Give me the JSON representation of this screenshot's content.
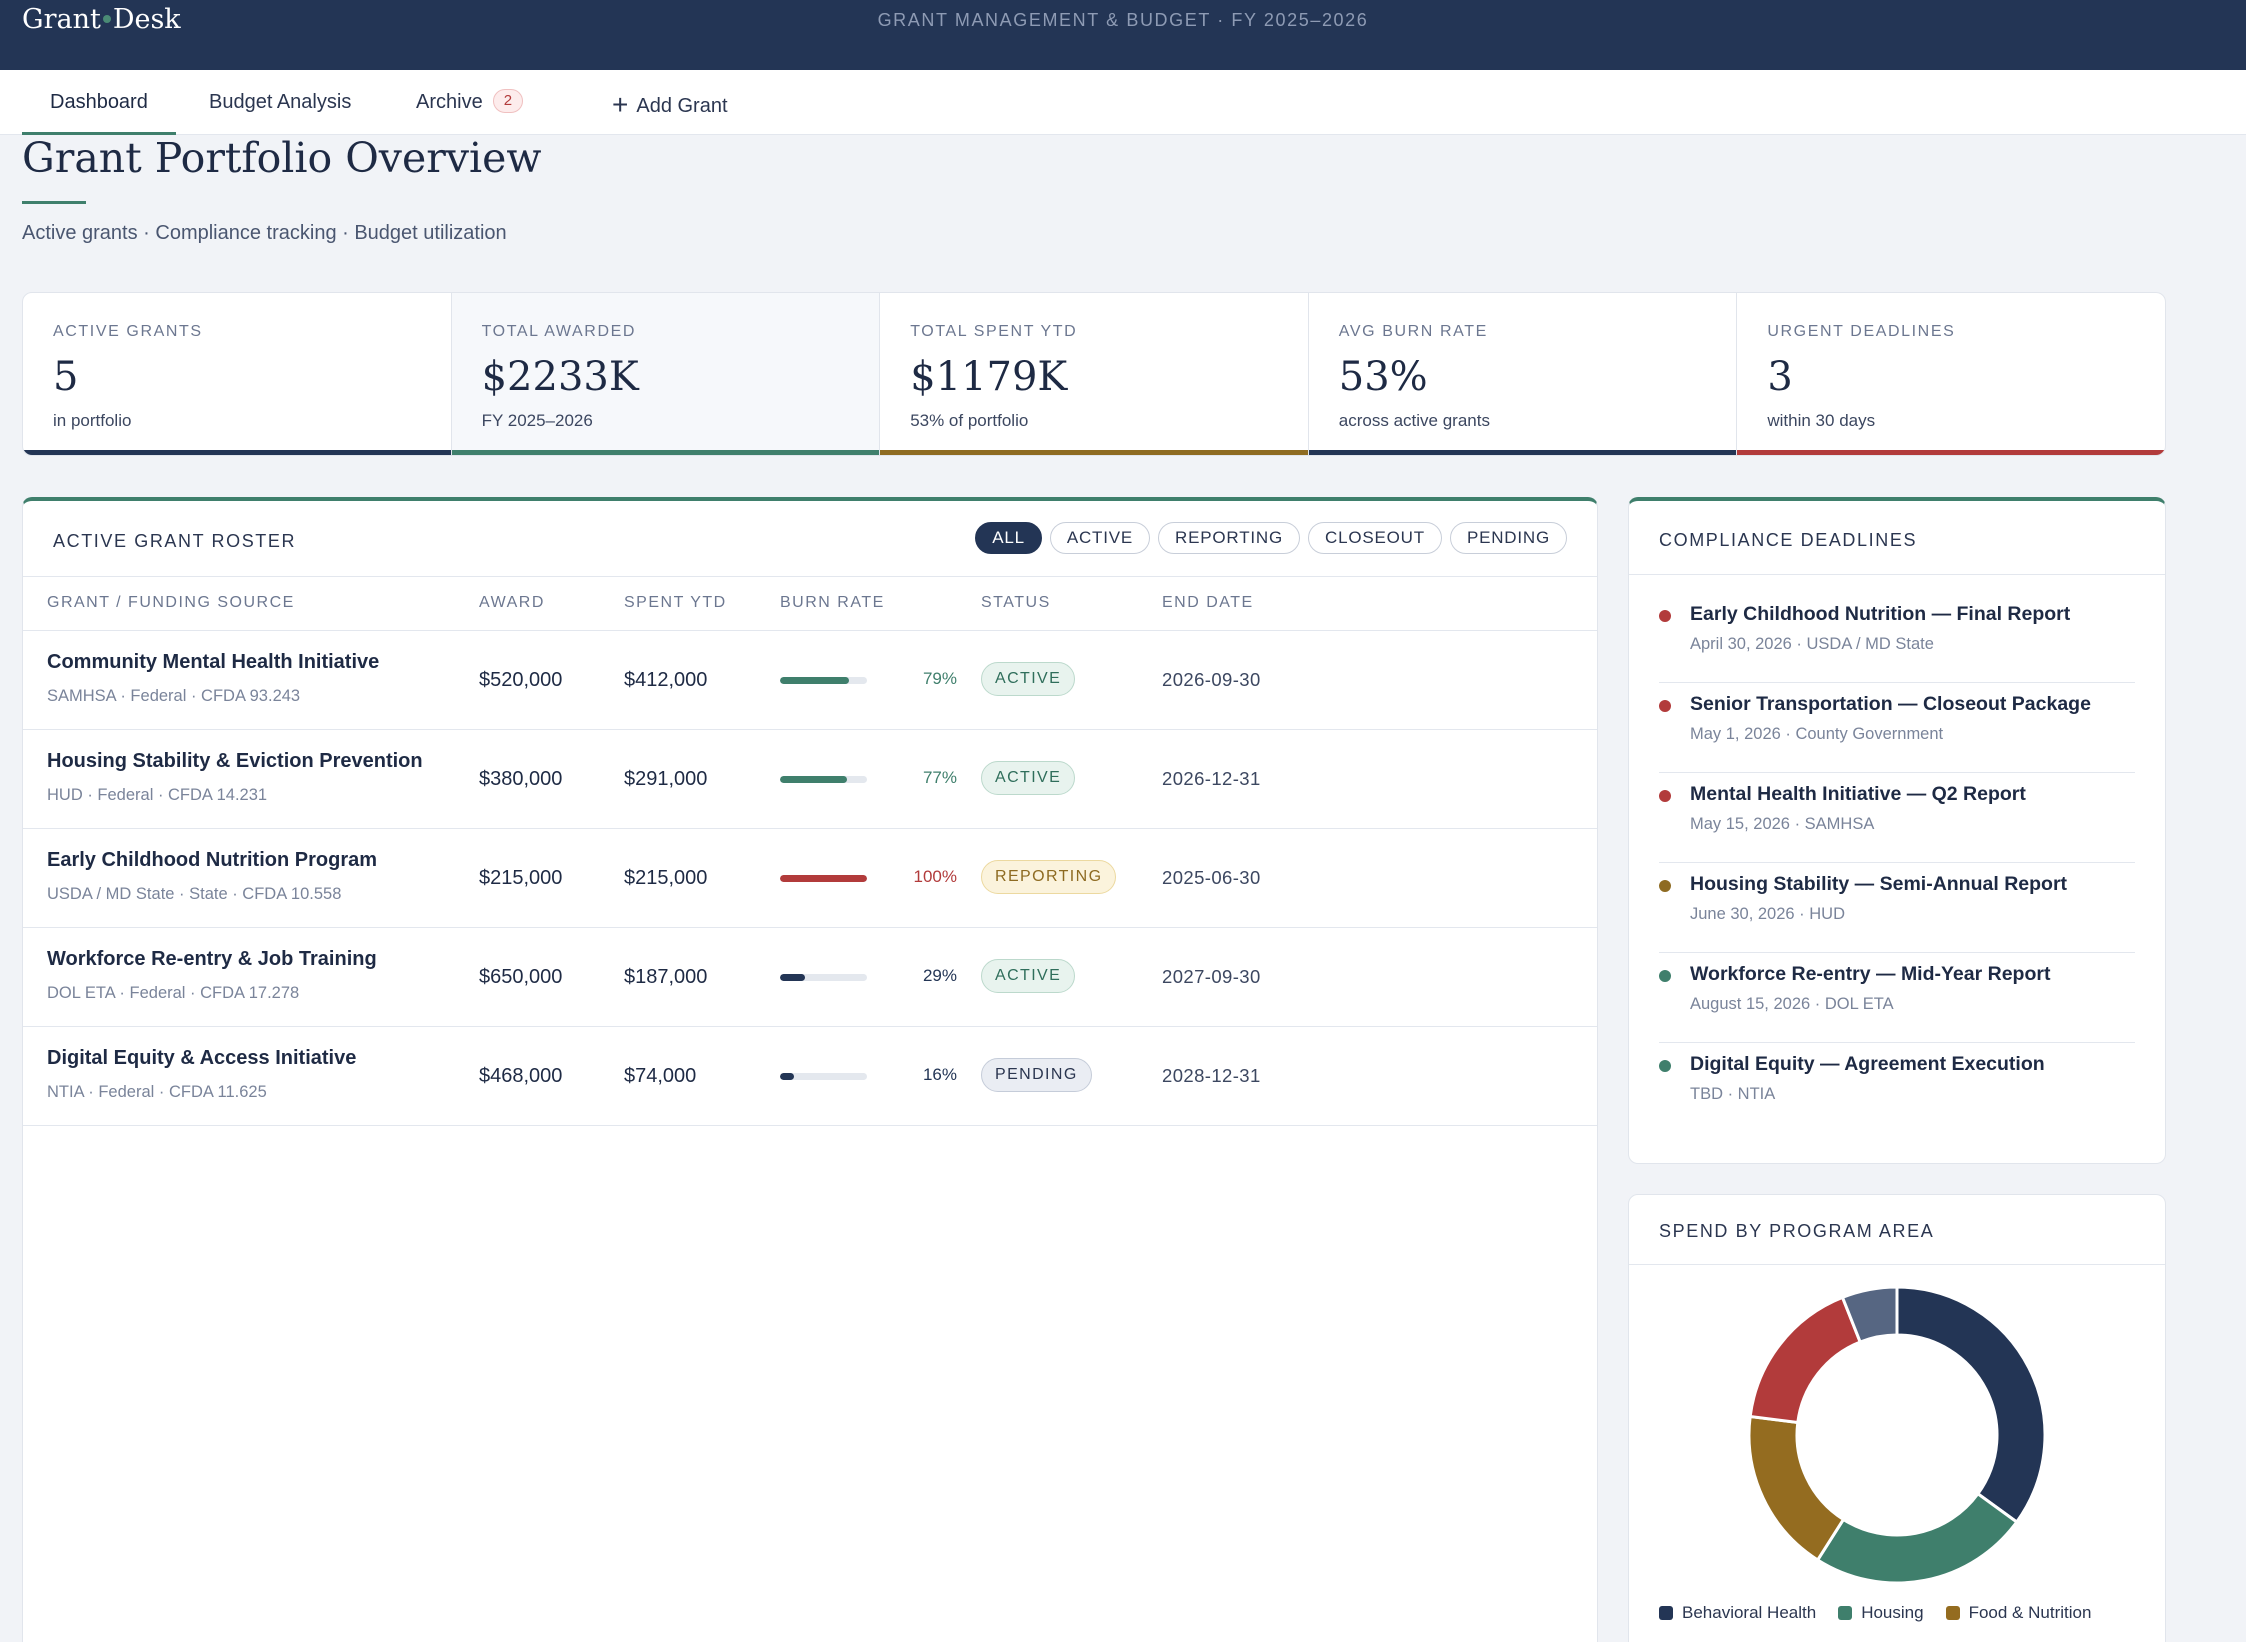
{
  "header": {
    "logo_left": "Grant",
    "logo_right": "Desk",
    "subtitle": "GRANT MANAGEMENT & BUDGET · FY 2025–2026"
  },
  "nav": {
    "tabs": [
      {
        "label": "Dashboard"
      },
      {
        "label": "Budget Analysis"
      },
      {
        "label": "Archive",
        "count": "2"
      }
    ],
    "add_label": "Add Grant"
  },
  "page": {
    "title": "Grant Portfolio Overview",
    "subtitle": "Active grants · Compliance tracking · Budget utilization"
  },
  "stats": [
    {
      "label": "ACTIVE GRANTS",
      "value": "5",
      "sub": "in portfolio",
      "color": "#233555"
    },
    {
      "label": "TOTAL AWARDED",
      "value": "$2233K",
      "sub": "FY 2025–2026",
      "color": "#3f7f6c"
    },
    {
      "label": "TOTAL SPENT YTD",
      "value": "$1179K",
      "sub": "53% of portfolio",
      "color": "#8e6b22"
    },
    {
      "label": "AVG BURN RATE",
      "value": "53%",
      "sub": "across active grants",
      "color": "#233555"
    },
    {
      "label": "URGENT DEADLINES",
      "value": "3",
      "sub": "within 30 days",
      "color": "#b23b3b"
    }
  ],
  "roster": {
    "title": "ACTIVE GRANT ROSTER",
    "filters": [
      "ALL",
      "ACTIVE",
      "REPORTING",
      "CLOSEOUT",
      "PENDING"
    ],
    "columns": [
      "GRANT / FUNDING SOURCE",
      "AWARD",
      "SPENT YTD",
      "BURN RATE",
      "STATUS",
      "END DATE"
    ],
    "rows": [
      {
        "name": "Community Mental Health Initiative",
        "source": "SAMHSA · Federal · CFDA 93.243",
        "award": "$520,000",
        "spent": "$412,000",
        "burn": 79,
        "burn_label": "79%",
        "status": "ACTIVE",
        "end": "2026-09-30"
      },
      {
        "name": "Housing Stability & Eviction Prevention",
        "source": "HUD · Federal · CFDA 14.231",
        "award": "$380,000",
        "spent": "$291,000",
        "burn": 77,
        "burn_label": "77%",
        "status": "ACTIVE",
        "end": "2026-12-31"
      },
      {
        "name": "Early Childhood Nutrition Program",
        "source": "USDA / MD State · State · CFDA 10.558",
        "award": "$215,000",
        "spent": "$215,000",
        "burn": 100,
        "burn_label": "100%",
        "status": "REPORTING",
        "end": "2025-06-30"
      },
      {
        "name": "Workforce Re-entry & Job Training",
        "source": "DOL ETA · Federal · CFDA 17.278",
        "award": "$650,000",
        "spent": "$187,000",
        "burn": 29,
        "burn_label": "29%",
        "status": "ACTIVE",
        "end": "2027-09-30"
      },
      {
        "name": "Digital Equity & Access Initiative",
        "source": "NTIA · Federal · CFDA 11.625",
        "award": "$468,000",
        "spent": "$74,000",
        "burn": 16,
        "burn_label": "16%",
        "status": "PENDING",
        "end": "2028-12-31"
      }
    ]
  },
  "deadlines": {
    "title": "COMPLIANCE DEADLINES",
    "items": [
      {
        "title": "Early Childhood Nutrition — Final Report",
        "meta": "April 30, 2026 · USDA / MD State",
        "color": "#b23b3b"
      },
      {
        "title": "Senior Transportation — Closeout Package",
        "meta": "May 1, 2026 · County Government",
        "color": "#b23b3b"
      },
      {
        "title": "Mental Health Initiative — Q2 Report",
        "meta": "May 15, 2026 · SAMHSA",
        "color": "#b23b3b"
      },
      {
        "title": "Housing Stability — Semi-Annual Report",
        "meta": "June 30, 2026 · HUD",
        "color": "#8e6b22"
      },
      {
        "title": "Workforce Re-entry — Mid-Year Report",
        "meta": "August 15, 2026 · DOL ETA",
        "color": "#3f7f6c"
      },
      {
        "title": "Digital Equity — Agreement Execution",
        "meta": "TBD · NTIA",
        "color": "#3f7f6c"
      }
    ]
  },
  "spend": {
    "title": "SPEND BY PROGRAM AREA",
    "chart_data": {
      "type": "pie",
      "categories": [
        "Behavioral Health",
        "Housing",
        "Food & Nutrition",
        "",
        ""
      ],
      "values": [
        35,
        24,
        18,
        17,
        6
      ],
      "colors": [
        "#233555",
        "#3f7f6c",
        "#946c20",
        "#b23b3b",
        "#566682"
      ]
    },
    "legend": [
      {
        "label": "Behavioral Health",
        "color": "#233555"
      },
      {
        "label": "Housing",
        "color": "#3f7f6c"
      },
      {
        "label": "Food & Nutrition",
        "color": "#946c20"
      }
    ]
  }
}
